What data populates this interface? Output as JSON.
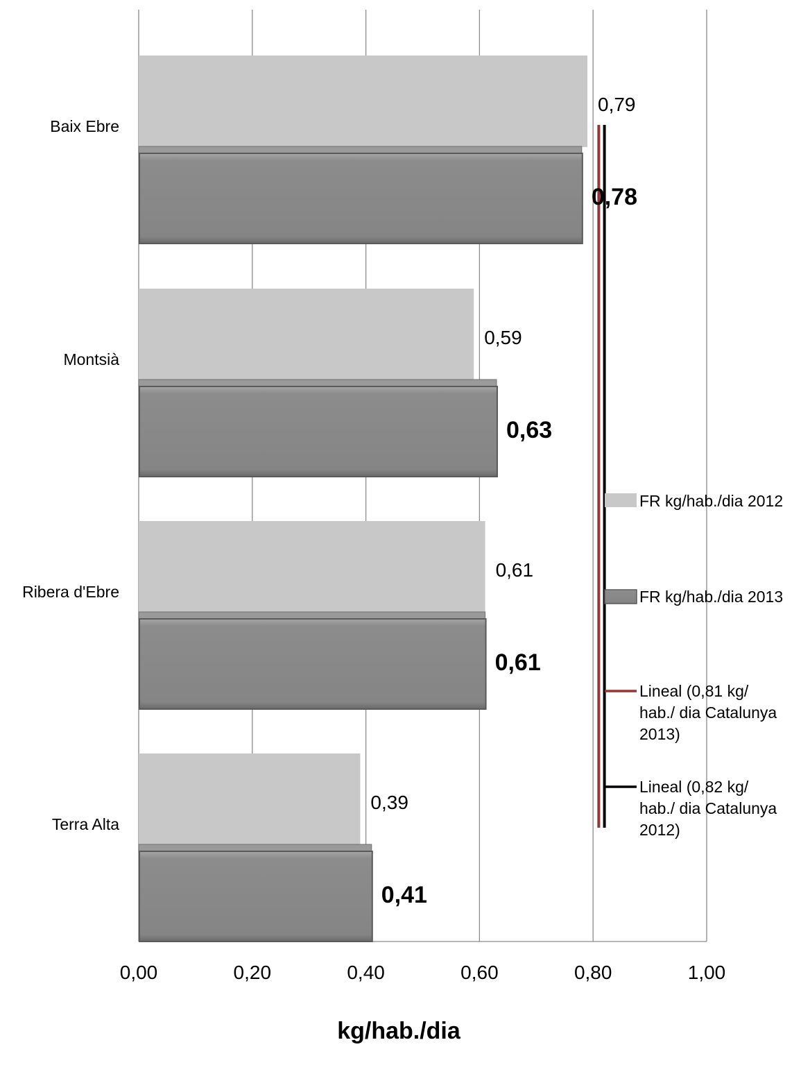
{
  "chart_data": {
    "type": "bar",
    "orientation": "horizontal",
    "categories": [
      "Baix Ebre",
      "Montsià",
      "Ribera d'Ebre",
      "Terra Alta"
    ],
    "series": [
      {
        "name": "FR kg/hab./dia 2012",
        "values": [
          0.79,
          0.59,
          0.61,
          0.39
        ],
        "labels": [
          "0,79",
          "0,59",
          "0,61",
          "0,39"
        ],
        "color": "#c8c8c8"
      },
      {
        "name": "FR kg/hab./dia 2013",
        "values": [
          0.78,
          0.63,
          0.61,
          0.41
        ],
        "labels": [
          "0,78",
          "0,63",
          "0,61",
          "0,41"
        ],
        "color": "#898989"
      }
    ],
    "reference_lines": [
      {
        "name": "Lineal (0,81 kg/ hab./ dia Catalunya 2013)",
        "value": 0.81,
        "color": "#943634"
      },
      {
        "name": "Lineal (0,82 kg/ hab./ dia Catalunya 2012)",
        "value": 0.82,
        "color": "#000000"
      }
    ],
    "xlim": [
      0,
      1
    ],
    "xticks": [
      0,
      0.2,
      0.4,
      0.6,
      0.8,
      1.0
    ],
    "xtick_labels": [
      "0,00",
      "0,20",
      "0,40",
      "0,60",
      "0,80",
      "1,00"
    ],
    "xlabel": "kg/hab./dia",
    "grid": "vertical",
    "legend_position": "right"
  }
}
